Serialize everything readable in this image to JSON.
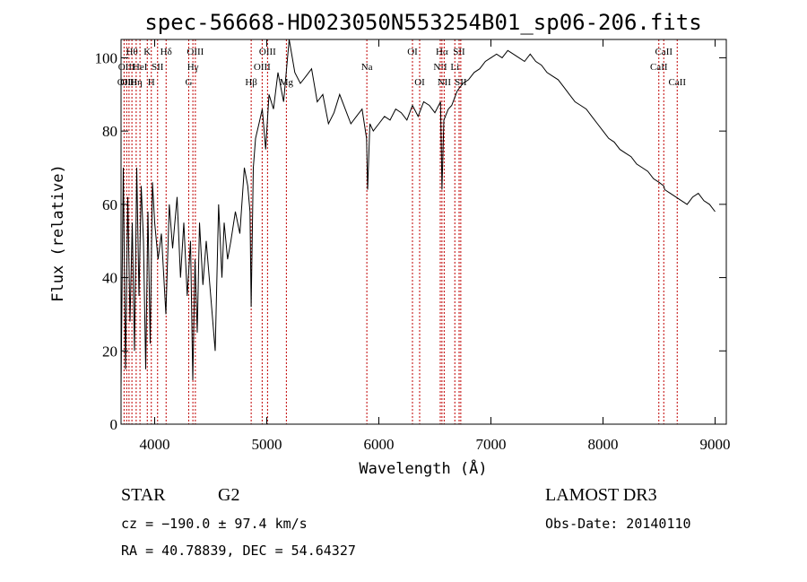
{
  "chart_data": {
    "type": "line",
    "title": "spec-56668-HD023050N553254B01_sp06-206.fits",
    "xlabel": "Wavelength (Å)",
    "ylabel": "Flux (relative)",
    "xlim": [
      3700,
      9100
    ],
    "ylim": [
      0,
      105
    ],
    "xticks": [
      4000,
      5000,
      6000,
      7000,
      8000,
      9000
    ],
    "yticks": [
      0,
      20,
      40,
      60,
      80,
      100
    ],
    "series": [
      {
        "name": "spectrum",
        "x": [
          3700,
          3720,
          3740,
          3760,
          3780,
          3800,
          3820,
          3840,
          3860,
          3880,
          3900,
          3920,
          3940,
          3960,
          3980,
          4000,
          4030,
          4060,
          4100,
          4130,
          4160,
          4200,
          4230,
          4260,
          4290,
          4320,
          4340,
          4360,
          4380,
          4400,
          4430,
          4460,
          4500,
          4540,
          4570,
          4600,
          4620,
          4650,
          4680,
          4720,
          4760,
          4800,
          4830,
          4850,
          4861,
          4880,
          4900,
          4930,
          4960,
          4990,
          5020,
          5060,
          5100,
          5150,
          5200,
          5250,
          5300,
          5350,
          5400,
          5450,
          5500,
          5550,
          5600,
          5650,
          5700,
          5750,
          5800,
          5850,
          5890,
          5900,
          5920,
          5950,
          6000,
          6050,
          6100,
          6150,
          6200,
          6250,
          6300,
          6350,
          6400,
          6450,
          6500,
          6550,
          6563,
          6580,
          6620,
          6650,
          6700,
          6750,
          6800,
          6850,
          6900,
          6950,
          7000,
          7050,
          7100,
          7150,
          7200,
          7250,
          7300,
          7350,
          7400,
          7450,
          7500,
          7550,
          7600,
          7650,
          7700,
          7750,
          7800,
          7850,
          7900,
          7950,
          8000,
          8050,
          8100,
          8150,
          8200,
          8250,
          8300,
          8350,
          8400,
          8450,
          8500,
          8542,
          8550,
          8600,
          8650,
          8700,
          8750,
          8800,
          8850,
          8900,
          8950,
          9000
        ],
        "values": [
          10,
          70,
          15,
          62,
          28,
          55,
          20,
          70,
          35,
          65,
          50,
          15,
          58,
          22,
          66,
          55,
          45,
          52,
          30,
          60,
          48,
          62,
          40,
          55,
          35,
          50,
          12,
          45,
          25,
          55,
          38,
          50,
          35,
          20,
          60,
          40,
          55,
          45,
          50,
          58,
          52,
          70,
          65,
          58,
          32,
          70,
          78,
          82,
          86,
          75,
          90,
          86,
          96,
          88,
          105,
          96,
          93,
          95,
          97,
          88,
          90,
          82,
          85,
          90,
          86,
          82,
          84,
          86,
          78,
          64,
          82,
          80,
          82,
          84,
          83,
          86,
          85,
          83,
          87,
          84,
          88,
          87,
          85,
          88,
          64,
          83,
          86,
          87,
          91,
          93,
          94,
          96,
          97,
          99,
          100,
          101,
          100,
          102,
          101,
          100,
          99,
          101,
          99,
          98,
          96,
          95,
          94,
          92,
          90,
          88,
          87,
          86,
          84,
          82,
          80,
          78,
          77,
          75,
          74,
          73,
          71,
          70,
          69,
          67,
          66,
          65,
          64,
          63,
          62,
          61,
          60,
          62,
          63,
          61,
          60,
          58
        ]
      }
    ],
    "line_markers": [
      {
        "x": 3727,
        "label": "OII",
        "row": 3
      },
      {
        "x": 3750,
        "label": "OIII",
        "row": 2
      },
      {
        "x": 3771,
        "label": "OIII",
        "row": 3
      },
      {
        "x": 3797,
        "label": "Hθ",
        "row": 1
      },
      {
        "x": 3835,
        "label": "Hη",
        "row": 3
      },
      {
        "x": 3869,
        "label": "HeI",
        "row": 2
      },
      {
        "x": 3934,
        "label": "K",
        "row": 1
      },
      {
        "x": 3970,
        "label": "H",
        "row": 3
      },
      {
        "x": 4026,
        "label": "SII",
        "row": 2
      },
      {
        "x": 4102,
        "label": "Hδ",
        "row": 1
      },
      {
        "x": 4304,
        "label": "G",
        "row": 3
      },
      {
        "x": 4341,
        "label": "Hγ",
        "row": 2
      },
      {
        "x": 4363,
        "label": "OIII",
        "row": 1
      },
      {
        "x": 4861,
        "label": "Hβ",
        "row": 3
      },
      {
        "x": 4959,
        "label": "OIII",
        "row": 2
      },
      {
        "x": 5007,
        "label": "OIII",
        "row": 1
      },
      {
        "x": 5175,
        "label": "Mg",
        "row": 3
      },
      {
        "x": 5893,
        "label": "Na",
        "row": 2
      },
      {
        "x": 6300,
        "label": "OI",
        "row": 1
      },
      {
        "x": 6364,
        "label": "OI",
        "row": 3
      },
      {
        "x": 6548,
        "label": "NII",
        "row": 2
      },
      {
        "x": 6563,
        "label": "Hα",
        "row": 1
      },
      {
        "x": 6583,
        "label": "NII",
        "row": 3
      },
      {
        "x": 6678,
        "label": "Li",
        "row": 2
      },
      {
        "x": 6716,
        "label": "SII",
        "row": 1
      },
      {
        "x": 6731,
        "label": "SII",
        "row": 3
      },
      {
        "x": 8498,
        "label": "CaII",
        "row": 2
      },
      {
        "x": 8542,
        "label": "CaII",
        "row": 1
      },
      {
        "x": 8662,
        "label": "CaII",
        "row": 3
      }
    ],
    "info": {
      "object_class": "STAR",
      "subclass": "G2",
      "survey": "LAMOST DR3",
      "velocity": "cz = −190.0 ± 97.4 km/s",
      "obs_date": "Obs-Date: 20140110",
      "coords": "RA =  40.78839, DEC =  54.64327"
    },
    "colors": {
      "spectrum": "#000000",
      "marker": "#c00000",
      "axes": "#000000"
    }
  }
}
